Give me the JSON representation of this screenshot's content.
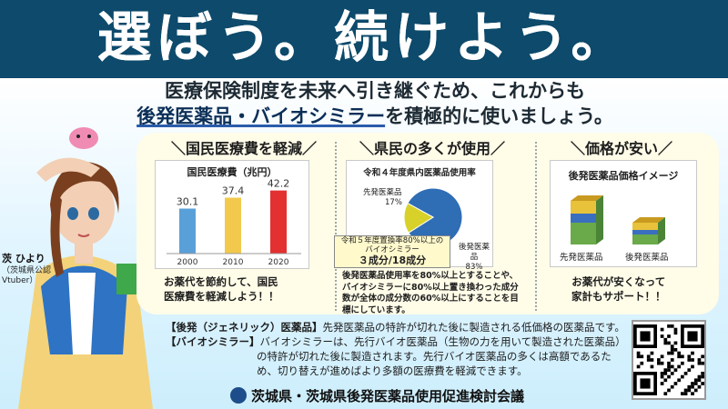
{
  "headline": "選ぼう。続けよう。",
  "subtitle": {
    "line1": "医療保険制度を未来へ引き継ぐため、これからも",
    "line2_em": "後発医薬品・バイオシミラー",
    "line2_rest": "を積極的に使いましょう。"
  },
  "columns": [
    {
      "title": "＼国民医療費を軽減／"
    },
    {
      "title": "＼県民の多くが使用／"
    },
    {
      "title": "＼価格が安い／"
    }
  ],
  "chart_data": [
    {
      "type": "bar",
      "title": "国民医療費（兆円）",
      "categories": [
        "2000",
        "2010",
        "2020"
      ],
      "values": [
        30.1,
        37.4,
        42.2
      ],
      "colors": [
        "#5aa0d8",
        "#f2c94c",
        "#e33030"
      ],
      "ylim": [
        0,
        45
      ]
    },
    {
      "type": "pie",
      "title": "令和４年度県内医薬品使用率",
      "slices": [
        {
          "label": "後発医薬品",
          "value": 83,
          "pct": "83%",
          "color": "#2f6db5"
        },
        {
          "label": "先発医薬品",
          "value": 17,
          "pct": "17%",
          "color": "#d7d12a"
        }
      ]
    },
    {
      "type": "bar",
      "title": "後発医薬品価格イメージ",
      "categories": [
        "先発医薬品",
        "後発医薬品"
      ],
      "stacked_colors": [
        "#e8c23a",
        "#3a6fc0",
        "#6aaa4a"
      ]
    }
  ],
  "captions": {
    "col1": [
      "お薬代を節約して、国民",
      "医療費を軽減しよう！！"
    ],
    "col2": [
      "後発医薬品使用率を80%以上とすることや、",
      "バイオシミラーに80%以上置き換わった成分",
      "数が全体の成分数の60%以上にすることを目",
      "標にしています。"
    ],
    "col3": [
      "お薬代が安くなって",
      "家計もサポート！！"
    ]
  },
  "callout": {
    "line1": "令和５年度置換率80%以上の",
    "line2": "バイオシミラー",
    "line3": "３成分/18成分"
  },
  "definitions": {
    "generic_term": "【後発（ジェネリック）医薬品】",
    "generic_text": "先発医薬品の特許が切れた後に製造される低価格の医薬品です。",
    "bio_term": "【バイオシミラー】",
    "bio_lines": [
      "バイオシミラーは、先行バイオ医薬品（生物の力を用いて製造された医薬品）",
      "の特許が切れた後に製造されます。先行バイオ医薬品の多くは高額であるた",
      "め、切り替えが進めばより多額の医療費を軽減できます。"
    ]
  },
  "character": {
    "name": "茨 ひより",
    "role": "（茨城県公認",
    "role2": "Vtuber）"
  },
  "footer": {
    "organization": "茨城県・茨城県後発医薬品使用促進検討会議"
  }
}
